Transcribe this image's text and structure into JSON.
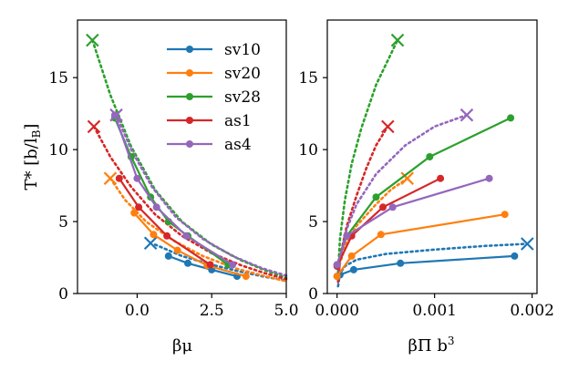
{
  "chart_data": [
    {
      "type": "line",
      "panel": "left",
      "xlabel": "βμ",
      "ylabel": "T* [b/l_B]",
      "xlim": [
        -2.0,
        5.0
      ],
      "ylim": [
        0,
        19
      ],
      "xticks": [
        0.0,
        2.5,
        5.0
      ],
      "xtick_labels": [
        "0.0",
        "2.5",
        "5.0"
      ],
      "yticks": [
        0,
        5,
        10,
        15
      ],
      "ytick_labels": [
        "0",
        "5",
        "10",
        "15"
      ],
      "legend_position": "top-right",
      "series": [
        {
          "name": "sv10",
          "color": "#1f77b4",
          "points": [
            [
              1.05,
              2.6
            ],
            [
              1.7,
              2.1
            ],
            [
              2.5,
              1.65
            ],
            [
              3.35,
              1.2
            ]
          ],
          "theory": [
            [
              0.6,
              3.4
            ],
            [
              1.5,
              2.6
            ],
            [
              2.5,
              2.0
            ],
            [
              3.5,
              1.5
            ],
            [
              4.3,
              1.15
            ],
            [
              5.0,
              0.9
            ]
          ],
          "cross": [
            0.45,
            3.5
          ]
        },
        {
          "name": "sv20",
          "color": "#ff7f0e",
          "points": [
            [
              -0.1,
              5.6
            ],
            [
              0.55,
              4.1
            ],
            [
              1.35,
              3.0
            ],
            [
              2.35,
              1.95
            ],
            [
              3.65,
              1.2
            ]
          ],
          "theory": [
            [
              -0.9,
              8.0
            ],
            [
              -0.4,
              6.5
            ],
            [
              0.3,
              5.0
            ],
            [
              1.2,
              3.7
            ],
            [
              2.2,
              2.6
            ],
            [
              3.3,
              1.75
            ],
            [
              4.3,
              1.2
            ],
            [
              5.0,
              0.85
            ]
          ],
          "cross": [
            -0.9,
            8.0
          ]
        },
        {
          "name": "sv28",
          "color": "#2ca02c",
          "points": [
            [
              -0.75,
              12.2
            ],
            [
              -0.2,
              9.5
            ],
            [
              0.45,
              6.7
            ],
            [
              1.05,
              5.0
            ],
            [
              1.7,
              4.0
            ],
            [
              3.05,
              2.0
            ]
          ],
          "theory": [
            [
              -1.5,
              17.6
            ],
            [
              -0.9,
              13.8
            ],
            [
              -0.2,
              10.2
            ],
            [
              0.6,
              7.2
            ],
            [
              1.5,
              5.0
            ],
            [
              2.5,
              3.4
            ],
            [
              3.5,
              2.3
            ],
            [
              4.3,
              1.6
            ],
            [
              5.0,
              1.1
            ]
          ],
          "cross": [
            -1.5,
            17.6
          ]
        },
        {
          "name": "as1",
          "color": "#d62728",
          "points": [
            [
              -0.6,
              8.0
            ],
            [
              0.05,
              6.0
            ],
            [
              1.0,
              4.0
            ],
            [
              2.45,
              2.0
            ]
          ],
          "theory": [
            [
              -1.45,
              11.6
            ],
            [
              -0.9,
              9.5
            ],
            [
              -0.2,
              7.4
            ],
            [
              0.6,
              5.5
            ],
            [
              1.5,
              4.0
            ],
            [
              2.5,
              2.8
            ],
            [
              3.5,
              1.95
            ],
            [
              4.3,
              1.4
            ],
            [
              5.0,
              1.0
            ]
          ],
          "cross": [
            -1.45,
            11.6
          ]
        },
        {
          "name": "as4",
          "color": "#9467bd",
          "points": [
            [
              -0.75,
              12.4
            ],
            [
              0.0,
              8.0
            ],
            [
              0.65,
              6.0
            ],
            [
              1.65,
              4.0
            ],
            [
              3.2,
              2.0
            ]
          ],
          "theory": [
            [
              -0.7,
              12.4
            ],
            [
              -0.2,
              10.0
            ],
            [
              0.5,
              7.4
            ],
            [
              1.3,
              5.3
            ],
            [
              2.2,
              3.8
            ],
            [
              3.2,
              2.6
            ],
            [
              4.2,
              1.75
            ],
            [
              5.0,
              1.25
            ]
          ],
          "cross": [
            -0.7,
            12.4
          ]
        }
      ]
    },
    {
      "type": "line",
      "panel": "right",
      "xlabel": "βΠ b³",
      "ylabel": "",
      "xlim": [
        -0.0001,
        0.00205
      ],
      "ylim": [
        0,
        19
      ],
      "xticks": [
        0.0,
        0.001,
        0.002
      ],
      "xtick_labels": [
        "0.000",
        "0.001",
        "0.002"
      ],
      "yticks": [
        0,
        5,
        10,
        15
      ],
      "ytick_labels": [
        "0",
        "5",
        "10",
        "15"
      ],
      "series": [
        {
          "name": "sv10",
          "color": "#1f77b4",
          "points": [
            [
              0.0,
              1.2
            ],
            [
              3e-05,
              1.3
            ],
            [
              0.00017,
              1.65
            ],
            [
              0.00065,
              2.1
            ],
            [
              0.00182,
              2.6
            ]
          ],
          "theory": [
            [
              1e-05,
              0.5
            ],
            [
              3e-05,
              1.4
            ],
            [
              8e-05,
              1.9
            ],
            [
              0.0002,
              2.35
            ],
            [
              0.0005,
              2.75
            ],
            [
              0.001,
              3.05
            ],
            [
              0.0015,
              3.3
            ],
            [
              0.00195,
              3.45
            ]
          ],
          "cross": [
            0.00195,
            3.45
          ]
        },
        {
          "name": "sv20",
          "color": "#ff7f0e",
          "points": [
            [
              0.0,
              1.2
            ],
            [
              0.00015,
              2.6
            ],
            [
              0.00045,
              4.1
            ],
            [
              0.00172,
              5.5
            ]
          ],
          "theory": [
            [
              1e-05,
              0.9
            ],
            [
              3e-05,
              2.1
            ],
            [
              0.0001,
              3.6
            ],
            [
              0.0002,
              4.7
            ],
            [
              0.0004,
              6.2
            ],
            [
              0.00055,
              7.2
            ],
            [
              0.00072,
              8.0
            ]
          ],
          "cross": [
            0.00072,
            8.0
          ]
        },
        {
          "name": "sv28",
          "color": "#2ca02c",
          "points": [
            [
              0.0,
              2.0
            ],
            [
              0.0001,
              4.0
            ],
            [
              0.0004,
              6.7
            ],
            [
              0.00095,
              9.5
            ],
            [
              0.00178,
              12.2
            ]
          ],
          "theory": [
            [
              1e-05,
              1.5
            ],
            [
              3e-05,
              3.8
            ],
            [
              8e-05,
              6.5
            ],
            [
              0.00015,
              9.0
            ],
            [
              0.00025,
              11.5
            ],
            [
              0.0004,
              14.5
            ],
            [
              0.00062,
              17.6
            ]
          ],
          "cross": [
            0.00062,
            17.6
          ]
        },
        {
          "name": "as1",
          "color": "#d62728",
          "points": [
            [
              0.0,
              1.9
            ],
            [
              0.00015,
              4.0
            ],
            [
              0.00047,
              6.0
            ],
            [
              0.00106,
              8.0
            ]
          ],
          "theory": [
            [
              1e-05,
              0.8
            ],
            [
              3e-05,
              2.5
            ],
            [
              0.0001,
              4.7
            ],
            [
              0.0002,
              6.8
            ],
            [
              0.0003,
              8.7
            ],
            [
              0.0004,
              10.3
            ],
            [
              0.00052,
              11.6
            ]
          ],
          "cross": [
            0.00052,
            11.6
          ]
        },
        {
          "name": "as4",
          "color": "#9467bd",
          "points": [
            [
              0.0,
              2.0
            ],
            [
              0.0001,
              4.0
            ],
            [
              0.00057,
              6.0
            ],
            [
              0.00156,
              8.0
            ]
          ],
          "theory": [
            [
              1e-05,
              1.0
            ],
            [
              3e-05,
              2.5
            ],
            [
              0.0001,
              4.5
            ],
            [
              0.0002,
              6.2
            ],
            [
              0.0004,
              8.3
            ],
            [
              0.0007,
              10.3
            ],
            [
              0.001,
              11.6
            ],
            [
              0.00133,
              12.4
            ]
          ],
          "cross": [
            0.00133,
            12.4
          ]
        }
      ]
    }
  ]
}
